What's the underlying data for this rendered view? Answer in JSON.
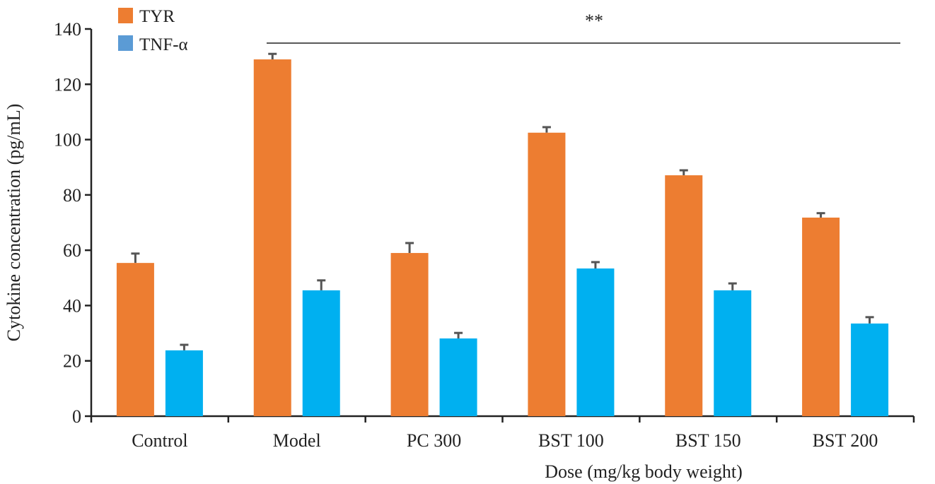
{
  "chart_data": {
    "type": "bar",
    "title": "",
    "xlabel": "Dose (mg/kg body weight)",
    "ylabel": "Cytokine concentration (pg/mL)",
    "ylim": [
      0,
      140
    ],
    "yticks": [
      0,
      20,
      40,
      60,
      80,
      100,
      120,
      140
    ],
    "categories": [
      "Control",
      "Model",
      "PC 300",
      "BST 100",
      "BST 150",
      "BST 200"
    ],
    "series": [
      {
        "name": "TYR",
        "color": "#ED7D31",
        "values": [
          55.4,
          129.0,
          59.0,
          102.5,
          87.1,
          71.8
        ],
        "errors": [
          3.4,
          2.0,
          3.6,
          2.0,
          1.8,
          1.6
        ]
      },
      {
        "name": "TNF-α",
        "color": "#00B0F0",
        "legend_color": "#5B9BD5",
        "values": [
          23.8,
          45.5,
          28.1,
          53.4,
          45.5,
          33.5
        ],
        "errors": [
          2.0,
          3.6,
          2.0,
          2.3,
          2.5,
          2.3
        ]
      }
    ],
    "legend_position": "top-left",
    "annotation": "**",
    "grid": false
  }
}
